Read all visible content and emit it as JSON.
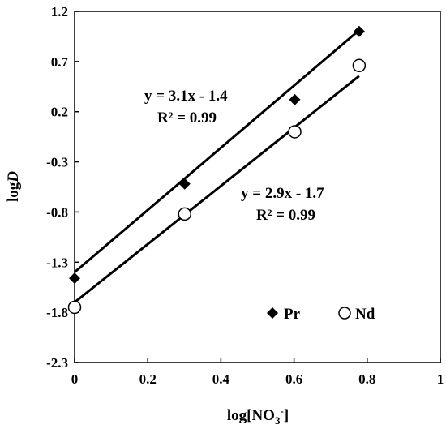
{
  "chart_data": {
    "type": "scatter",
    "xlabel": "log[NO3-]",
    "xlabel_parts": {
      "prefix": "log[NO",
      "sub": "3",
      "sup": "-",
      "suffix": "]"
    },
    "ylabel": "logD",
    "ylabel_parts": {
      "plain": "log",
      "italic": "D"
    },
    "xlim": [
      0,
      1
    ],
    "ylim": [
      -2.3,
      1.2
    ],
    "xticks": [
      0,
      0.2,
      0.4,
      0.6,
      0.8,
      1
    ],
    "xtick_labels": [
      "0",
      "0.2",
      "0.4",
      "0.6",
      "0.8",
      "1"
    ],
    "yticks": [
      1.2,
      0.7,
      0.2,
      -0.3,
      -0.8,
      -1.3,
      -1.8,
      -2.3
    ],
    "ytick_labels": [
      "1.2",
      "0.7",
      "0.2",
      "-0.3",
      "-0.8",
      "-1.3",
      "-1.8",
      "-2.3"
    ],
    "grid": false,
    "legend_position": "bottom-right",
    "series": [
      {
        "name": "Pr",
        "marker": "diamond-filled",
        "color": "#000000",
        "x": [
          0,
          0.301,
          0.602,
          0.778
        ],
        "y": [
          -1.46,
          -0.52,
          0.32,
          1.0
        ],
        "fit": {
          "slope": 3.1,
          "intercept": -1.4,
          "equation": "y = 3.1x - 1.4",
          "r2": "R² = 0.99"
        }
      },
      {
        "name": "Nd",
        "marker": "circle-open",
        "color": "#000000",
        "x": [
          0,
          0.301,
          0.602,
          0.778
        ],
        "y": [
          -1.75,
          -0.82,
          0.0,
          0.66
        ],
        "fit": {
          "slope": 2.9,
          "intercept": -1.7,
          "equation": "y = 2.9x - 1.7",
          "r2": "R² = 0.99"
        }
      }
    ]
  }
}
